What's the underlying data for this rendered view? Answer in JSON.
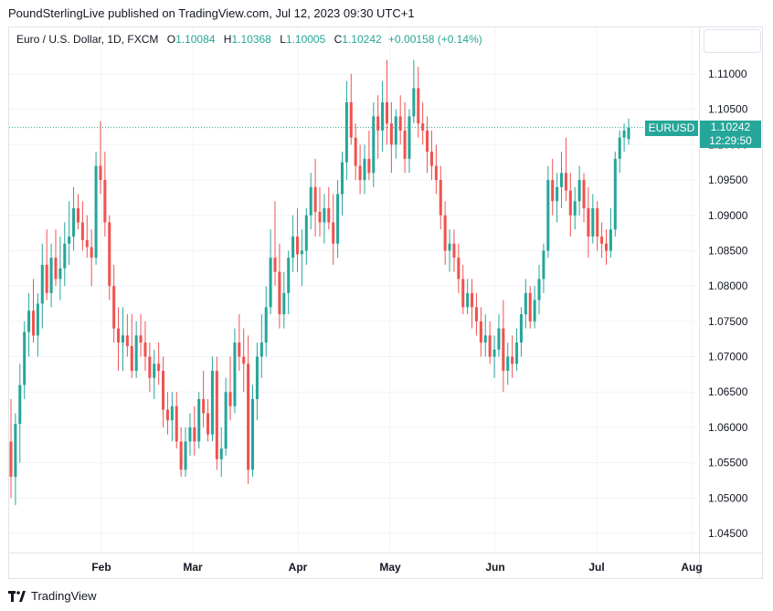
{
  "header": {
    "publisher_line": "PoundSterlingLive published on TradingView.com, Jul 12, 2023 09:30 UTC+1"
  },
  "legend": {
    "symbol": "Euro / U.S. Dollar, 1D, FXCM",
    "o_label": "O",
    "o_value": "1.10084",
    "h_label": "H",
    "h_value": "1.10368",
    "l_label": "L",
    "l_value": "1.10005",
    "c_label": "C",
    "c_value": "1.10242",
    "change": "+0.00158 (+0.14%)"
  },
  "price_tag": {
    "symbol": "EURUSD",
    "price": "1.10242",
    "countdown": "12:29:50"
  },
  "footer": {
    "brand": "TradingView"
  },
  "colors": {
    "up": "#26a69a",
    "down": "#ef5350",
    "grid": "#f0f3fa"
  },
  "chart_data": {
    "type": "candlestick",
    "y_ticks": [
      "1.11000",
      "1.10500",
      "1.10000",
      "1.09500",
      "1.09000",
      "1.08500",
      "1.08000",
      "1.07500",
      "1.07000",
      "1.06500",
      "1.06000",
      "1.05500",
      "1.05000",
      "1.04500"
    ],
    "x_ticks": [
      "Feb",
      "Mar",
      "Apr",
      "May",
      "Jun",
      "Jul",
      "Aug"
    ],
    "ylim": [
      1.0425,
      1.1145
    ],
    "last_price": 1.10242,
    "candles": [
      [
        1.058,
        1.064,
        1.05,
        1.053
      ],
      [
        1.053,
        1.062,
        1.049,
        1.0605
      ],
      [
        1.0605,
        1.069,
        1.055,
        1.066
      ],
      [
        1.066,
        1.075,
        1.064,
        1.0735
      ],
      [
        1.0735,
        1.079,
        1.07,
        1.0765
      ],
      [
        1.0765,
        1.081,
        1.072,
        1.073
      ],
      [
        1.073,
        1.079,
        1.07,
        1.0775
      ],
      [
        1.0775,
        1.086,
        1.074,
        1.083
      ],
      [
        1.083,
        1.088,
        1.078,
        1.079
      ],
      [
        1.079,
        1.086,
        1.077,
        1.084
      ],
      [
        1.084,
        1.088,
        1.08,
        1.081
      ],
      [
        1.081,
        1.087,
        1.078,
        1.0825
      ],
      [
        1.0825,
        1.089,
        1.08,
        1.086
      ],
      [
        1.086,
        1.092,
        1.083,
        1.087
      ],
      [
        1.087,
        1.094,
        1.085,
        1.091
      ],
      [
        1.091,
        1.093,
        1.088,
        1.089
      ],
      [
        1.089,
        1.092,
        1.085,
        1.0865
      ],
      [
        1.0865,
        1.09,
        1.084,
        1.0855
      ],
      [
        1.0855,
        1.088,
        1.08,
        1.084
      ],
      [
        1.084,
        1.099,
        1.083,
        1.097
      ],
      [
        1.097,
        1.1033,
        1.093,
        1.095
      ],
      [
        1.095,
        1.099,
        1.087,
        1.089
      ],
      [
        1.089,
        1.09,
        1.078,
        1.08
      ],
      [
        1.08,
        1.083,
        1.072,
        1.074
      ],
      [
        1.074,
        1.077,
        1.068,
        1.072
      ],
      [
        1.072,
        1.077,
        1.068,
        1.073
      ],
      [
        1.073,
        1.076,
        1.07,
        1.0715
      ],
      [
        1.0715,
        1.076,
        1.067,
        1.068
      ],
      [
        1.068,
        1.075,
        1.067,
        1.073
      ],
      [
        1.073,
        1.076,
        1.07,
        1.072
      ],
      [
        1.072,
        1.075,
        1.068,
        1.07
      ],
      [
        1.07,
        1.072,
        1.065,
        1.067
      ],
      [
        1.067,
        1.071,
        1.064,
        1.069
      ],
      [
        1.069,
        1.072,
        1.066,
        1.068
      ],
      [
        1.068,
        1.07,
        1.06,
        1.0625
      ],
      [
        1.0625,
        1.065,
        1.059,
        1.061
      ],
      [
        1.061,
        1.065,
        1.058,
        1.063
      ],
      [
        1.063,
        1.065,
        1.057,
        1.058
      ],
      [
        1.058,
        1.06,
        1.053,
        1.054
      ],
      [
        1.054,
        1.06,
        1.053,
        1.058
      ],
      [
        1.058,
        1.062,
        1.056,
        1.06
      ],
      [
        1.06,
        1.063,
        1.056,
        1.058
      ],
      [
        1.058,
        1.065,
        1.057,
        1.064
      ],
      [
        1.064,
        1.068,
        1.06,
        1.062
      ],
      [
        1.062,
        1.064,
        1.058,
        1.059
      ],
      [
        1.059,
        1.07,
        1.058,
        1.068
      ],
      [
        1.068,
        1.07,
        1.054,
        1.0555
      ],
      [
        1.0555,
        1.06,
        1.053,
        1.057
      ],
      [
        1.057,
        1.067,
        1.056,
        1.065
      ],
      [
        1.065,
        1.07,
        1.061,
        1.063
      ],
      [
        1.063,
        1.074,
        1.062,
        1.072
      ],
      [
        1.072,
        1.076,
        1.068,
        1.07
      ],
      [
        1.07,
        1.074,
        1.065,
        1.069
      ],
      [
        1.069,
        1.073,
        1.052,
        1.054
      ],
      [
        1.054,
        1.066,
        1.053,
        1.064
      ],
      [
        1.064,
        1.072,
        1.061,
        1.07
      ],
      [
        1.07,
        1.076,
        1.067,
        1.072
      ],
      [
        1.072,
        1.08,
        1.07,
        1.077
      ],
      [
        1.077,
        1.088,
        1.076,
        1.084
      ],
      [
        1.084,
        1.092,
        1.08,
        1.082
      ],
      [
        1.082,
        1.086,
        1.074,
        1.076
      ],
      [
        1.076,
        1.082,
        1.074,
        1.079
      ],
      [
        1.079,
        1.085,
        1.076,
        1.084
      ],
      [
        1.084,
        1.09,
        1.082,
        1.087
      ],
      [
        1.087,
        1.091,
        1.082,
        1.0845
      ],
      [
        1.0845,
        1.088,
        1.08,
        1.085
      ],
      [
        1.085,
        1.091,
        1.083,
        1.09
      ],
      [
        1.09,
        1.096,
        1.088,
        1.094
      ],
      [
        1.094,
        1.098,
        1.087,
        1.0905
      ],
      [
        1.0905,
        1.094,
        1.087,
        1.089
      ],
      [
        1.089,
        1.093,
        1.086,
        1.091
      ],
      [
        1.091,
        1.094,
        1.088,
        1.089
      ],
      [
        1.089,
        1.093,
        1.083,
        1.086
      ],
      [
        1.086,
        1.095,
        1.084,
        1.093
      ],
      [
        1.093,
        1.099,
        1.09,
        1.0975
      ],
      [
        1.0975,
        1.109,
        1.095,
        1.106
      ],
      [
        1.106,
        1.11,
        1.1,
        1.101
      ],
      [
        1.101,
        1.103,
        1.095,
        1.097
      ],
      [
        1.097,
        1.1,
        1.093,
        1.095
      ],
      [
        1.095,
        1.1,
        1.093,
        1.098
      ],
      [
        1.098,
        1.102,
        1.095,
        1.096
      ],
      [
        1.096,
        1.106,
        1.094,
        1.104
      ],
      [
        1.104,
        1.107,
        1.098,
        1.102
      ],
      [
        1.102,
        1.109,
        1.099,
        1.106
      ],
      [
        1.106,
        1.112,
        1.1,
        1.103
      ],
      [
        1.103,
        1.106,
        1.096,
        1.1
      ],
      [
        1.1,
        1.105,
        1.098,
        1.104
      ],
      [
        1.104,
        1.107,
        1.1,
        1.102
      ],
      [
        1.102,
        1.106,
        1.096,
        1.098
      ],
      [
        1.098,
        1.105,
        1.096,
        1.104
      ],
      [
        1.104,
        1.112,
        1.103,
        1.108
      ],
      [
        1.108,
        1.111,
        1.101,
        1.103
      ],
      [
        1.103,
        1.106,
        1.1,
        1.102
      ],
      [
        1.102,
        1.104,
        1.096,
        1.099
      ],
      [
        1.099,
        1.102,
        1.095,
        1.097
      ],
      [
        1.097,
        1.1,
        1.093,
        1.095
      ],
      [
        1.095,
        1.097,
        1.088,
        1.09
      ],
      [
        1.09,
        1.092,
        1.083,
        1.085
      ],
      [
        1.085,
        1.088,
        1.082,
        1.086
      ],
      [
        1.086,
        1.088,
        1.082,
        1.084
      ],
      [
        1.084,
        1.086,
        1.079,
        1.081
      ],
      [
        1.081,
        1.083,
        1.076,
        1.077
      ],
      [
        1.077,
        1.081,
        1.076,
        1.079
      ],
      [
        1.079,
        1.081,
        1.074,
        1.077
      ],
      [
        1.077,
        1.079,
        1.073,
        1.075
      ],
      [
        1.075,
        1.077,
        1.07,
        1.072
      ],
      [
        1.072,
        1.076,
        1.07,
        1.073
      ],
      [
        1.073,
        1.075,
        1.069,
        1.07
      ],
      [
        1.07,
        1.073,
        1.067,
        1.071
      ],
      [
        1.071,
        1.076,
        1.07,
        1.074
      ],
      [
        1.074,
        1.078,
        1.065,
        1.068
      ],
      [
        1.068,
        1.072,
        1.066,
        1.07
      ],
      [
        1.07,
        1.073,
        1.067,
        1.069
      ],
      [
        1.069,
        1.074,
        1.068,
        1.072
      ],
      [
        1.072,
        1.077,
        1.07,
        1.076
      ],
      [
        1.076,
        1.081,
        1.074,
        1.079
      ],
      [
        1.079,
        1.08,
        1.074,
        1.075
      ],
      [
        1.075,
        1.08,
        1.074,
        1.078
      ],
      [
        1.078,
        1.083,
        1.076,
        1.081
      ],
      [
        1.081,
        1.086,
        1.079,
        1.085
      ],
      [
        1.085,
        1.097,
        1.084,
        1.095
      ],
      [
        1.095,
        1.098,
        1.09,
        1.092
      ],
      [
        1.092,
        1.096,
        1.089,
        1.094
      ],
      [
        1.094,
        1.099,
        1.091,
        1.096
      ],
      [
        1.096,
        1.101,
        1.092,
        1.0935
      ],
      [
        1.0935,
        1.096,
        1.087,
        1.09
      ],
      [
        1.09,
        1.094,
        1.088,
        1.092
      ],
      [
        1.092,
        1.097,
        1.09,
        1.095
      ],
      [
        1.095,
        1.096,
        1.089,
        1.091
      ],
      [
        1.091,
        1.094,
        1.084,
        1.087
      ],
      [
        1.087,
        1.093,
        1.086,
        1.091
      ],
      [
        1.091,
        1.092,
        1.085,
        1.087
      ],
      [
        1.087,
        1.089,
        1.084,
        1.086
      ],
      [
        1.086,
        1.088,
        1.083,
        1.085
      ],
      [
        1.085,
        1.091,
        1.084,
        1.088
      ],
      [
        1.088,
        1.099,
        1.087,
        1.098
      ],
      [
        1.098,
        1.102,
        1.096,
        1.101
      ],
      [
        1.101,
        1.103,
        1.099,
        1.102
      ],
      [
        1.1008,
        1.1037,
        1.1,
        1.1024
      ]
    ]
  }
}
